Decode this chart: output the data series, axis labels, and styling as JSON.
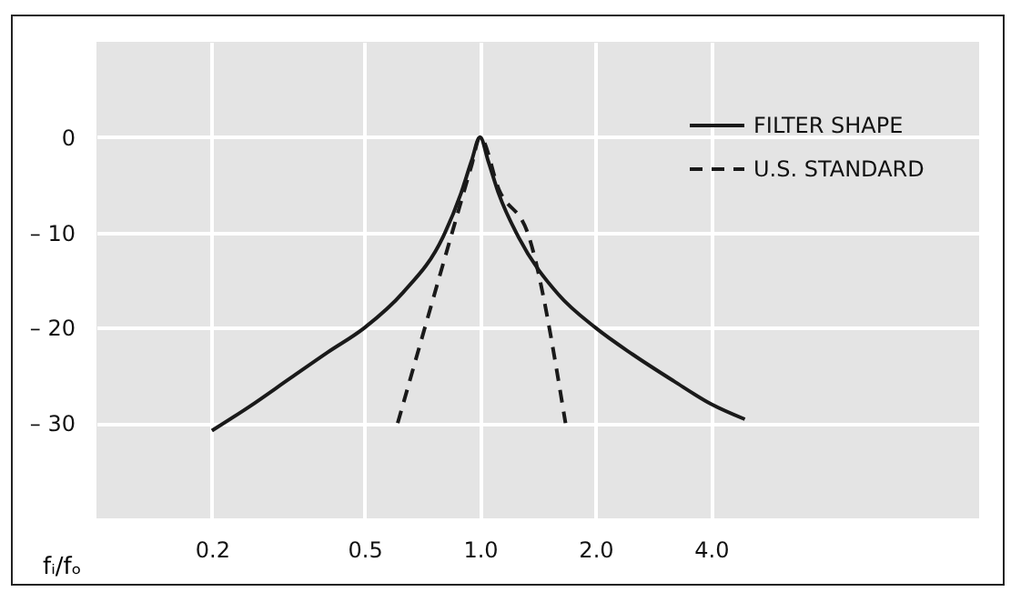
{
  "chart_data": {
    "type": "line",
    "xlabel": "fᵢ/fₒ",
    "log": "x",
    "xlim": [
      0.1,
      20
    ],
    "ylim": [
      -40,
      10
    ],
    "xticks": [
      0.2,
      0.5,
      {
        "value": 1,
        "label": "1.0"
      },
      {
        "value": 2,
        "label": "2.0"
      },
      {
        "value": 4,
        "label": "4.0"
      }
    ],
    "yticks": [
      {
        "value": -30,
        "label": "– 30"
      },
      {
        "value": -20,
        "label": "– 20"
      },
      {
        "value": -10,
        "label": "– 10"
      },
      0
    ],
    "grid": true,
    "legend": "top right",
    "marker": "none",
    "series": [
      {
        "name": "FILTER SHAPE",
        "color": "#1a1a1a",
        "line_style": "solid",
        "x": [
          0.2,
          0.25,
          0.32,
          0.4,
          0.5,
          0.63,
          0.8,
          0.89,
          0.95,
          1.0,
          1.05,
          1.12,
          1.26,
          1.6,
          2.0,
          2.5,
          3.2,
          4.0,
          4.9
        ],
        "values": [
          -30.8,
          -28.3,
          -25.3,
          -22.6,
          -20,
          -16.3,
          -10.5,
          -6,
          -2.5,
          0,
          -2.5,
          -6,
          -10.5,
          -16.5,
          -20,
          -22.8,
          -25.6,
          -28,
          -29.6
        ]
      },
      {
        "name": "U.S. STANDARD",
        "color": "#1a1a1a",
        "line_style": "dashed",
        "x": [
          0.61,
          0.86,
          0.95,
          1.0,
          1.12,
          1.34,
          1.67
        ],
        "values": [
          -30,
          -9,
          -3,
          0,
          -5.5,
          -10.4,
          -30
        ]
      }
    ]
  }
}
